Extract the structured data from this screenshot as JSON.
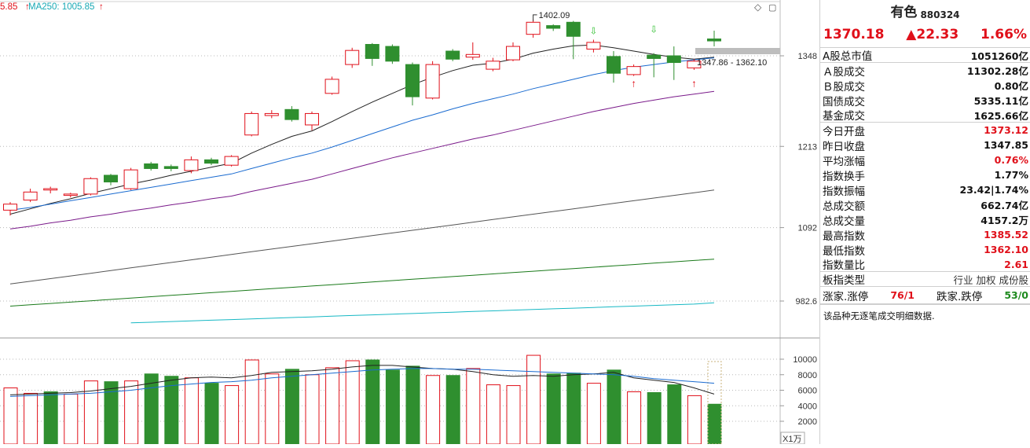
{
  "chart_header": {
    "ma_partial": "5.85",
    "ma250": "MA250: 1005.85"
  },
  "price_axis": [
    "1348",
    "1213",
    "1092",
    "982.6"
  ],
  "price_axis_values": [
    1348,
    1213,
    1092,
    982.6
  ],
  "volume_axis": [
    "10000",
    "8000",
    "6000",
    "4000",
    "2000"
  ],
  "volume_axis_values": [
    10000,
    8000,
    6000,
    4000,
    2000
  ],
  "volume_unit": "X1万",
  "annotations": {
    "high_label": "1402.09",
    "range_label": "1347.86 - 1362.10"
  },
  "chart_data": {
    "type": "candlestick",
    "candles": [
      {
        "o": 1118,
        "c": 1127,
        "h": 1130,
        "l": 1110,
        "up": true
      },
      {
        "o": 1133,
        "c": 1145,
        "h": 1150,
        "l": 1130,
        "up": true
      },
      {
        "o": 1148,
        "c": 1150,
        "h": 1153,
        "l": 1143,
        "up": true
      },
      {
        "o": 1142,
        "c": 1140,
        "h": 1144,
        "l": 1137,
        "up": true
      },
      {
        "o": 1142,
        "c": 1165,
        "h": 1167,
        "l": 1140,
        "up": true
      },
      {
        "o": 1170,
        "c": 1160,
        "h": 1172,
        "l": 1155,
        "up": false
      },
      {
        "o": 1150,
        "c": 1178,
        "h": 1181,
        "l": 1148,
        "up": true
      },
      {
        "o": 1187,
        "c": 1180,
        "h": 1190,
        "l": 1177,
        "up": false
      },
      {
        "o": 1183,
        "c": 1180,
        "h": 1186,
        "l": 1176,
        "up": false
      },
      {
        "o": 1177,
        "c": 1193,
        "h": 1198,
        "l": 1173,
        "up": true
      },
      {
        "o": 1193,
        "c": 1188,
        "h": 1196,
        "l": 1185,
        "up": false
      },
      {
        "o": 1185,
        "c": 1198,
        "h": 1200,
        "l": 1183,
        "up": true
      },
      {
        "o": 1230,
        "c": 1262,
        "h": 1265,
        "l": 1228,
        "up": true
      },
      {
        "o": 1262,
        "c": 1259,
        "h": 1267,
        "l": 1255,
        "up": true
      },
      {
        "o": 1268,
        "c": 1253,
        "h": 1273,
        "l": 1250,
        "up": false
      },
      {
        "o": 1245,
        "c": 1262,
        "h": 1265,
        "l": 1237,
        "up": true
      },
      {
        "o": 1292,
        "c": 1313,
        "h": 1317,
        "l": 1290,
        "up": true
      },
      {
        "o": 1335,
        "c": 1356,
        "h": 1360,
        "l": 1330,
        "up": true
      },
      {
        "o": 1365,
        "c": 1344,
        "h": 1367,
        "l": 1333,
        "up": false
      },
      {
        "o": 1362,
        "c": 1340,
        "h": 1365,
        "l": 1336,
        "up": false
      },
      {
        "o": 1335,
        "c": 1287,
        "h": 1338,
        "l": 1274,
        "up": false
      },
      {
        "o": 1285,
        "c": 1335,
        "h": 1340,
        "l": 1283,
        "up": true
      },
      {
        "o": 1355,
        "c": 1343,
        "h": 1358,
        "l": 1340,
        "up": false
      },
      {
        "o": 1346,
        "c": 1350,
        "h": 1368,
        "l": 1342,
        "up": true
      },
      {
        "o": 1328,
        "c": 1340,
        "h": 1345,
        "l": 1325,
        "up": true
      },
      {
        "o": 1342,
        "c": 1362,
        "h": 1368,
        "l": 1340,
        "up": true
      },
      {
        "o": 1380,
        "c": 1398,
        "h": 1402.09,
        "l": 1375,
        "up": true
      },
      {
        "o": 1393,
        "c": 1389,
        "h": 1395,
        "l": 1385,
        "up": false
      },
      {
        "o": 1398,
        "c": 1377,
        "h": 1400,
        "l": 1343,
        "up": false
      },
      {
        "o": 1358,
        "c": 1368,
        "h": 1372,
        "l": 1353,
        "up": true
      },
      {
        "o": 1347,
        "c": 1322,
        "h": 1355,
        "l": 1308,
        "up": false
      },
      {
        "o": 1320,
        "c": 1332,
        "h": 1335,
        "l": 1318,
        "up": true
      },
      {
        "o": 1349,
        "c": 1344,
        "h": 1352,
        "l": 1316,
        "up": false
      },
      {
        "o": 1348,
        "c": 1338,
        "h": 1362,
        "l": 1312,
        "up": false
      },
      {
        "o": 1330,
        "c": 1340,
        "h": 1343,
        "l": 1327,
        "up": true
      },
      {
        "o": 1373.12,
        "c": 1370.18,
        "h": 1385.52,
        "l": 1362.1,
        "up": false
      }
    ],
    "volume": [
      {
        "v": 6300,
        "up": true
      },
      {
        "v": 5600,
        "up": true
      },
      {
        "v": 5800,
        "up": false
      },
      {
        "v": 5500,
        "up": true
      },
      {
        "v": 7200,
        "up": true
      },
      {
        "v": 7100,
        "up": false
      },
      {
        "v": 7200,
        "up": true
      },
      {
        "v": 8100,
        "up": false
      },
      {
        "v": 7800,
        "up": false
      },
      {
        "v": 7600,
        "up": true
      },
      {
        "v": 6900,
        "up": false
      },
      {
        "v": 6600,
        "up": true
      },
      {
        "v": 9900,
        "up": true
      },
      {
        "v": 8100,
        "up": true
      },
      {
        "v": 8700,
        "up": false
      },
      {
        "v": 8000,
        "up": true
      },
      {
        "v": 8900,
        "up": true
      },
      {
        "v": 9800,
        "up": true
      },
      {
        "v": 9900,
        "up": false
      },
      {
        "v": 8600,
        "up": false
      },
      {
        "v": 9100,
        "up": false
      },
      {
        "v": 7900,
        "up": true
      },
      {
        "v": 7900,
        "up": false
      },
      {
        "v": 8800,
        "up": true
      },
      {
        "v": 6700,
        "up": true
      },
      {
        "v": 6600,
        "up": true
      },
      {
        "v": 10500,
        "up": true
      },
      {
        "v": 8100,
        "up": false
      },
      {
        "v": 8200,
        "up": false
      },
      {
        "v": 6900,
        "up": true
      },
      {
        "v": 8600,
        "up": false
      },
      {
        "v": 5800,
        "up": true
      },
      {
        "v": 5700,
        "up": false
      },
      {
        "v": 6700,
        "up": false
      },
      {
        "v": 5300,
        "up": true
      },
      {
        "v": 4200,
        "up": false
      }
    ],
    "ma_lines": [
      {
        "color": "#222222",
        "values": [
          1112,
          1120,
          1128,
          1135,
          1143,
          1150,
          1157,
          1163,
          1170,
          1176,
          1182,
          1188,
          1203,
          1216,
          1228,
          1236,
          1250,
          1265,
          1279,
          1292,
          1305,
          1316,
          1326,
          1334,
          1337,
          1343,
          1352,
          1358,
          1363,
          1364,
          1360,
          1355,
          1350,
          1346,
          1343,
          1346
        ]
      },
      {
        "color": "#1a6bd0",
        "values": [
          1118,
          1122,
          1127,
          1132,
          1137,
          1142,
          1147,
          1152,
          1157,
          1162,
          1167,
          1172,
          1180,
          1188,
          1196,
          1203,
          1212,
          1222,
          1232,
          1242,
          1252,
          1260,
          1269,
          1277,
          1284,
          1291,
          1299,
          1306,
          1313,
          1320,
          1326,
          1331,
          1335,
          1339,
          1342,
          1345
        ]
      },
      {
        "color": "#7a1a8a",
        "values": [
          1090,
          1094,
          1099,
          1103,
          1108,
          1112,
          1117,
          1121,
          1126,
          1130,
          1135,
          1139,
          1146,
          1152,
          1158,
          1164,
          1172,
          1180,
          1188,
          1196,
          1203,
          1210,
          1217,
          1224,
          1230,
          1237,
          1244,
          1251,
          1258,
          1265,
          1271,
          1277,
          1282,
          1287,
          1291,
          1295
        ]
      },
      {
        "color": "#555555",
        "values": [
          1008,
          1012,
          1016,
          1020,
          1024,
          1028,
          1032,
          1036,
          1040,
          1044,
          1048,
          1052,
          1056,
          1060,
          1064,
          1068,
          1072,
          1076,
          1080,
          1084,
          1088,
          1092,
          1096,
          1100,
          1104,
          1108,
          1112,
          1116,
          1120,
          1124,
          1128,
          1132,
          1136,
          1140,
          1144,
          1148
        ]
      },
      {
        "color": "#1a7a1a",
        "values": [
          975,
          977,
          979,
          981,
          983,
          985,
          987,
          989,
          991,
          993,
          995,
          997,
          999,
          1001,
          1003,
          1005,
          1007,
          1009,
          1011,
          1013,
          1015,
          1017,
          1019,
          1021,
          1023,
          1025,
          1027,
          1029,
          1031,
          1033,
          1035,
          1037,
          1039,
          1041,
          1043,
          1045
        ]
      },
      {
        "color": "#17b8c4",
        "values": [
          null,
          null,
          null,
          null,
          null,
          null,
          950,
          951,
          952,
          953,
          954,
          955,
          956,
          957,
          958,
          959,
          960,
          961,
          962,
          963,
          964,
          965,
          966,
          967,
          968,
          969,
          970,
          971,
          972,
          973,
          974,
          975,
          976,
          977,
          978,
          980
        ]
      }
    ],
    "vol_ma_lines": [
      {
        "color": "#222222",
        "values": [
          5400,
          5500,
          5600,
          5700,
          5900,
          6200,
          6500,
          6900,
          7300,
          7600,
          7700,
          7600,
          7900,
          8300,
          8400,
          8500,
          8700,
          9000,
          9200,
          9200,
          9000,
          8800,
          8700,
          8400,
          8000,
          7800,
          7900,
          7800,
          8000,
          8100,
          8300,
          7600,
          7300,
          7000,
          6300,
          5500
        ]
      },
      {
        "color": "#1a6bd0",
        "values": [
          5200,
          5300,
          5400,
          5500,
          5600,
          5800,
          6000,
          6300,
          6600,
          6800,
          7000,
          7100,
          7300,
          7600,
          7800,
          8000,
          8200,
          8400,
          8600,
          8700,
          8800,
          8800,
          8700,
          8700,
          8600,
          8500,
          8400,
          8300,
          8200,
          8100,
          8000,
          7800,
          7500,
          7300,
          7100,
          6900
        ]
      }
    ]
  },
  "panel": {
    "name": "有色",
    "code": "880324",
    "price": "1370.18",
    "change": "▲22.33",
    "pct": "1.66%",
    "rows_a": [
      {
        "label": "A股总市值",
        "value": "1051260亿",
        "cls": ""
      }
    ],
    "rows_b": [
      {
        "label": "Ａ股成交",
        "value": "11302.28亿",
        "cls": ""
      },
      {
        "label": "Ｂ股成交",
        "value": "0.80亿",
        "cls": ""
      },
      {
        "label": "国债成交",
        "value": "5335.11亿",
        "cls": ""
      },
      {
        "label": "基金成交",
        "value": "1625.66亿",
        "cls": ""
      }
    ],
    "rows_c": [
      {
        "label": "今日开盘",
        "value": "1373.12",
        "cls": "red"
      },
      {
        "label": "昨日收盘",
        "value": "1347.85",
        "cls": ""
      },
      {
        "label": "平均涨幅",
        "value": "0.76%",
        "cls": "red"
      },
      {
        "label": "指数换手",
        "value": "1.77%",
        "cls": ""
      },
      {
        "label": "指数振幅",
        "value": "23.42|1.74%",
        "cls": ""
      },
      {
        "label": "总成交额",
        "value": "662.74亿",
        "cls": ""
      },
      {
        "label": "总成交量",
        "value": "4157.2万",
        "cls": ""
      },
      {
        "label": "最高指数",
        "value": "1385.52",
        "cls": "red"
      },
      {
        "label": "最低指数",
        "value": "1362.10",
        "cls": "red"
      },
      {
        "label": "指数量比",
        "value": "2.61",
        "cls": "red"
      }
    ],
    "board_type_label": "板指类型",
    "board_type_value": "行业 加权 成份股",
    "rise_label": "涨家.涨停",
    "rise_value": "76/1",
    "fall_label": "跌家.跌停",
    "fall_value": "53/0",
    "note": "该品种无逐笔成交明细数据."
  },
  "colors": {
    "up": "#e0101a",
    "down": "#2f8f2f",
    "accent": "#e0101a"
  }
}
